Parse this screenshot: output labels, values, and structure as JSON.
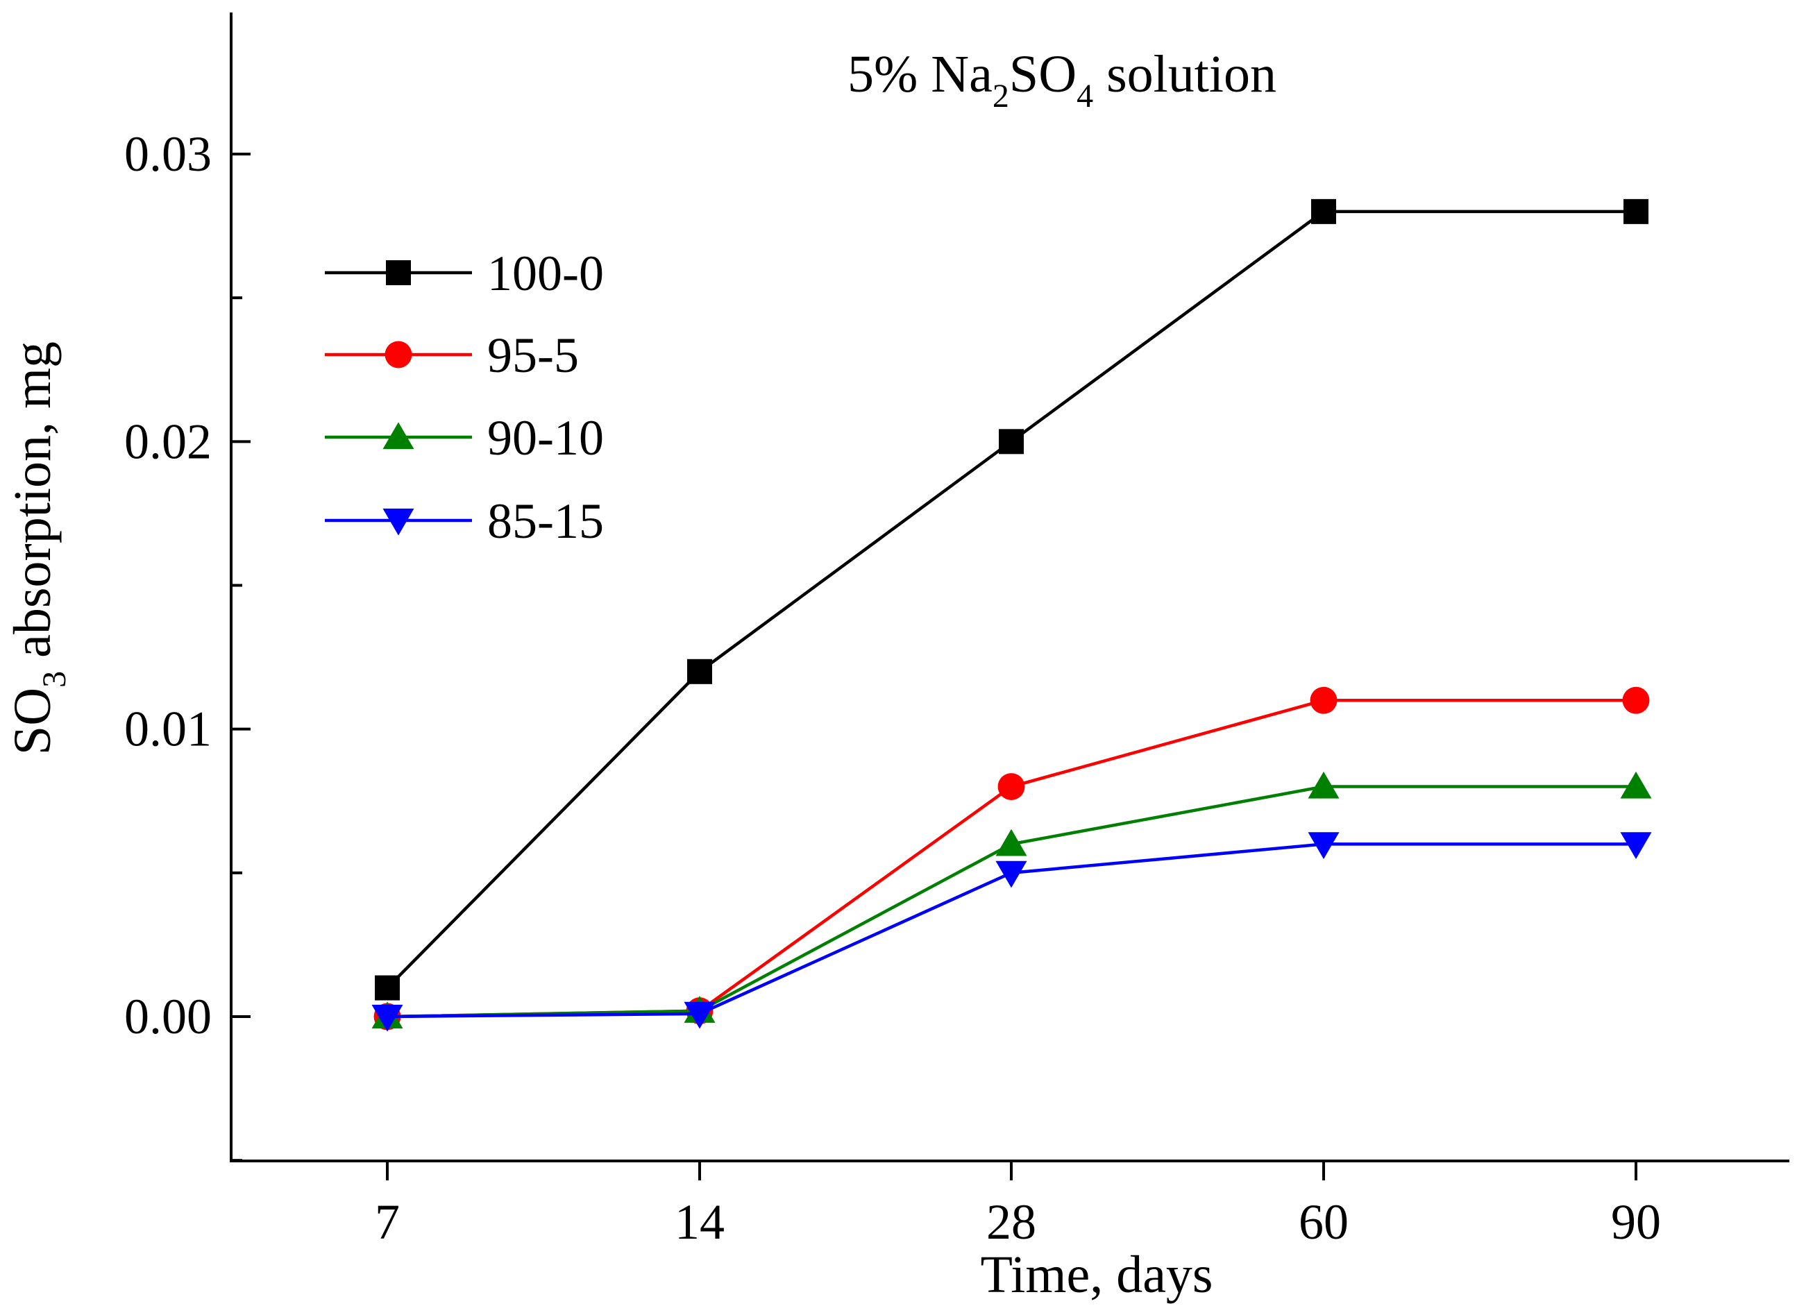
{
  "chart_data": {
    "type": "line",
    "title": {
      "prefix": "5% Na",
      "sub1": "2",
      "mid": "SO",
      "sub2": "4",
      "suffix": " solution"
    },
    "xlabel": "Time, days",
    "ylabel": {
      "prefix": "SO",
      "sub": "3",
      "suffix": " absorption, mg"
    },
    "categories": [
      "7",
      "14",
      "28",
      "60",
      "90"
    ],
    "ylim": [
      -0.005,
      0.035
    ],
    "yticks": [
      0.0,
      0.01,
      0.02,
      0.03
    ],
    "ytick_labels": [
      "0.00",
      "0.01",
      "0.02",
      "0.03"
    ],
    "legend_position": "upper-left",
    "grid": false,
    "series": [
      {
        "name": "100-0",
        "color": "#000000",
        "marker": "square",
        "values": [
          0.001,
          0.012,
          0.02,
          0.028,
          0.028
        ]
      },
      {
        "name": "95-5",
        "color": "#ff0000",
        "marker": "circle",
        "values": [
          0.0,
          0.0002,
          0.008,
          0.011,
          0.011
        ]
      },
      {
        "name": "90-10",
        "color": "#008000",
        "marker": "triangle-up",
        "values": [
          0.0,
          0.0002,
          0.006,
          0.008,
          0.008
        ]
      },
      {
        "name": "85-15",
        "color": "#0000ff",
        "marker": "triangle-down",
        "values": [
          0.0,
          0.0001,
          0.005,
          0.006,
          0.006
        ]
      }
    ]
  }
}
